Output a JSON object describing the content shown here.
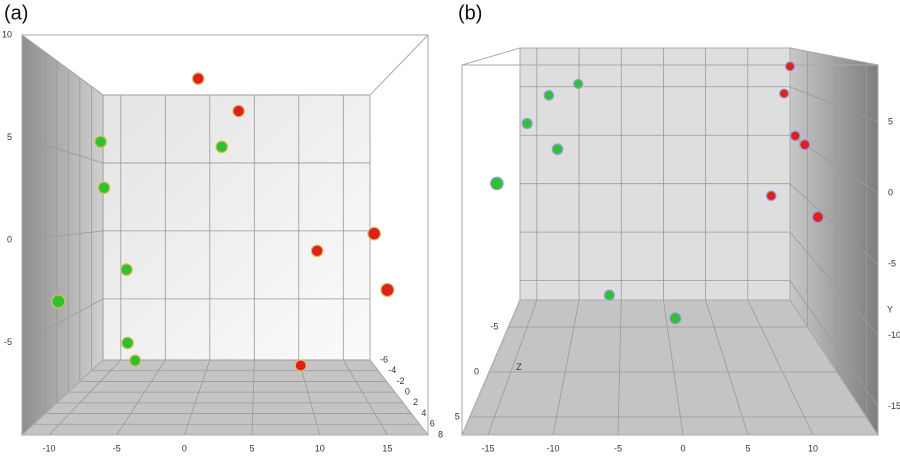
{
  "chart_data": [
    {
      "type": "scatter3d",
      "title": "(a)",
      "xlim": [
        -12,
        18
      ],
      "ylim": [
        -9.5,
        10
      ],
      "zlim": [
        8,
        -6
      ],
      "xticks": [
        -10,
        -5,
        0,
        5,
        10,
        15
      ],
      "yticks": [
        -5,
        0,
        5,
        10
      ],
      "zticks": [
        -6,
        -4,
        -2,
        0,
        2,
        4,
        6,
        8
      ],
      "yaxis_position": "left",
      "grid": true,
      "series": [
        {
          "color": "#2fc12f",
          "x": [
            -8.6,
            -8.3,
            -6.3,
            -10.4,
            -6.2,
            -6.0,
            2.2
          ],
          "y": [
            5.5,
            2.8,
            -2.0,
            -3.3,
            -6.3,
            -7.7,
            5.2
          ],
          "z": [
            1,
            1,
            1,
            5.2,
            1,
            -0.4,
            1
          ]
        },
        {
          "color": "#e0201b",
          "x": [
            0.1,
            3.7,
            15.0,
            10.7,
            15.7,
            9.4
          ],
          "y": [
            9.2,
            7.3,
            0.2,
            -0.9,
            -2.7,
            -8.0
          ],
          "z": [
            1,
            1,
            3.8,
            1,
            5.2,
            -0.4
          ]
        }
      ]
    },
    {
      "type": "scatter3d",
      "title": "(b)",
      "ylabel": "Y",
      "zlabel": "Z",
      "xlim": [
        -17,
        15
      ],
      "ylim": [
        -17,
        9
      ],
      "zlim": [
        7,
        -8
      ],
      "xticks": [
        -15,
        -10,
        -5,
        0,
        5,
        10
      ],
      "yticks": [
        -15,
        -10,
        -5,
        0,
        5
      ],
      "zticks": [
        -5,
        0,
        5
      ],
      "yaxis_position": "right",
      "grid": true,
      "series": [
        {
          "color": "#2fc12f",
          "x": [
            -15.5,
            -15.0,
            -13.1,
            -10.1,
            -11.4,
            -6.2,
            0.4
          ],
          "y": [
            -0.6,
            2.2,
            4.5,
            5.3,
            0.3,
            -14.0,
            -13.9
          ],
          "z": [
            2.5,
            -5,
            -6.5,
            -8,
            -3.5,
            -5,
            -2
          ]
        },
        {
          "color": "#e0201b",
          "x": [
            15.0,
            14.3,
            14.6,
            14.7,
            11.9,
            14.3
          ],
          "y": [
            7.1,
            4.3,
            0.5,
            0.2,
            -5.4,
            -5.1
          ],
          "z": [
            -8,
            -8,
            -6.5,
            -5,
            -6.5,
            -2
          ]
        }
      ]
    }
  ]
}
